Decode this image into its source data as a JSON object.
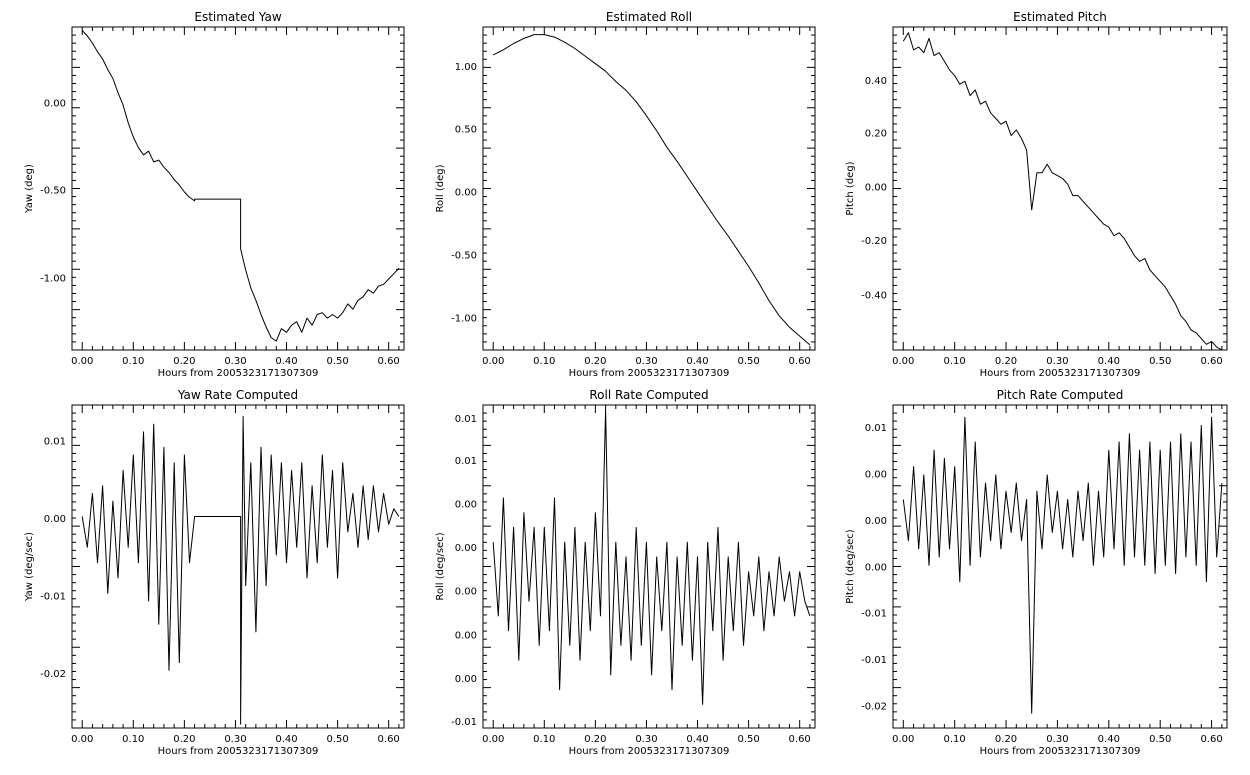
{
  "charts": [
    {
      "title": "Estimated Yaw",
      "xlabel": "Hours from 2005323171307309",
      "ylabel": "Yaw (deg)",
      "xticks": [
        "0.00",
        "0.10",
        "0.20",
        "0.30",
        "0.40",
        "0.50",
        "0.60"
      ],
      "yticks": [
        "0.00",
        "-0.50",
        "-1.00"
      ]
    },
    {
      "title": "Estimated Roll",
      "xlabel": "Hours from 2005323171307309",
      "ylabel": "Roll (deg)",
      "xticks": [
        "0.00",
        "0.10",
        "0.20",
        "0.30",
        "0.40",
        "0.50",
        "0.60"
      ],
      "yticks": [
        "1.00",
        "0.50",
        "0.00",
        "-0.50",
        "-1.00"
      ]
    },
    {
      "title": "Estimated Pitch",
      "xlabel": "Hours from 2005323171307309",
      "ylabel": "Pitch (deg)",
      "xticks": [
        "0.00",
        "0.10",
        "0.20",
        "0.30",
        "0.40",
        "0.50",
        "0.60"
      ],
      "yticks": [
        "0.40",
        "0.20",
        "0.00",
        "-0.20",
        "-0.40"
      ]
    },
    {
      "title": "Yaw Rate Computed",
      "xlabel": "Hours from 2005323171307309",
      "ylabel": "Yaw (deg/sec)",
      "xticks": [
        "0.00",
        "0.10",
        "0.20",
        "0.30",
        "0.40",
        "0.50",
        "0.60"
      ],
      "yticks": [
        "0.01",
        "0.00",
        "-0.01",
        "-0.02"
      ]
    },
    {
      "title": "Roll Rate Computed",
      "xlabel": "Hours from 2005323171307309",
      "ylabel": "Roll (deg/sec)",
      "xticks": [
        "0.00",
        "0.10",
        "0.20",
        "0.30",
        "0.40",
        "0.50",
        "0.60"
      ],
      "yticks": [
        "0.01",
        "0.01",
        "0.00",
        "0.00",
        "0.00",
        "0.00",
        "0.00",
        "-0.01"
      ]
    },
    {
      "title": "Pitch Rate Computed",
      "xlabel": "Hours from 2005323171307309",
      "ylabel": "Pitch (deg/sec)",
      "xticks": [
        "0.00",
        "0.10",
        "0.20",
        "0.30",
        "0.40",
        "0.50",
        "0.60"
      ],
      "yticks": [
        "0.01",
        "0.00",
        "0.00",
        "0.00",
        "-0.01",
        "-0.01",
        "-0.02"
      ]
    }
  ],
  "chart_data": [
    {
      "type": "line",
      "title": "Estimated Yaw",
      "xlabel": "Hours from 2005323171307309",
      "ylabel": "Yaw (deg)",
      "xlim": [
        -0.02,
        0.63
      ],
      "ylim": [
        -1.4,
        0.42
      ],
      "grid": false,
      "x": [
        0.0,
        0.01,
        0.02,
        0.03,
        0.04,
        0.05,
        0.06,
        0.07,
        0.08,
        0.09,
        0.1,
        0.11,
        0.12,
        0.13,
        0.14,
        0.15,
        0.16,
        0.17,
        0.18,
        0.19,
        0.2,
        0.21,
        0.22,
        0.22,
        0.31,
        0.31,
        0.32,
        0.33,
        0.34,
        0.35,
        0.36,
        0.37,
        0.38,
        0.39,
        0.4,
        0.41,
        0.42,
        0.43,
        0.44,
        0.45,
        0.46,
        0.47,
        0.48,
        0.49,
        0.5,
        0.51,
        0.52,
        0.53,
        0.54,
        0.55,
        0.56,
        0.57,
        0.58,
        0.59,
        0.6,
        0.61,
        0.62
      ],
      "y": [
        0.4,
        0.37,
        0.33,
        0.28,
        0.24,
        0.18,
        0.13,
        0.05,
        -0.02,
        -0.12,
        -0.2,
        -0.26,
        -0.3,
        -0.28,
        -0.34,
        -0.33,
        -0.37,
        -0.4,
        -0.44,
        -0.47,
        -0.51,
        -0.54,
        -0.56,
        -0.55,
        -0.55,
        -0.83,
        -0.95,
        -1.05,
        -1.12,
        -1.2,
        -1.27,
        -1.33,
        -1.35,
        -1.28,
        -1.3,
        -1.26,
        -1.24,
        -1.3,
        -1.22,
        -1.26,
        -1.2,
        -1.19,
        -1.22,
        -1.2,
        -1.22,
        -1.19,
        -1.14,
        -1.17,
        -1.12,
        -1.1,
        -1.06,
        -1.08,
        -1.04,
        -1.03,
        -1.0,
        -0.97,
        -0.94
      ]
    },
    {
      "type": "line",
      "title": "Estimated Roll",
      "xlabel": "Hours from 2005323171307309",
      "ylabel": "Roll (deg)",
      "xlim": [
        -0.02,
        0.63
      ],
      "ylim": [
        -1.25,
        1.3
      ],
      "grid": false,
      "x": [
        0.0,
        0.02,
        0.04,
        0.06,
        0.08,
        0.1,
        0.12,
        0.14,
        0.16,
        0.18,
        0.2,
        0.22,
        0.24,
        0.26,
        0.28,
        0.3,
        0.32,
        0.34,
        0.36,
        0.38,
        0.4,
        0.42,
        0.44,
        0.46,
        0.48,
        0.5,
        0.52,
        0.54,
        0.56,
        0.58,
        0.6,
        0.62
      ],
      "y": [
        1.08,
        1.12,
        1.17,
        1.21,
        1.24,
        1.24,
        1.22,
        1.18,
        1.13,
        1.07,
        1.01,
        0.95,
        0.87,
        0.8,
        0.71,
        0.6,
        0.48,
        0.35,
        0.24,
        0.12,
        0.0,
        -0.12,
        -0.24,
        -0.35,
        -0.47,
        -0.59,
        -0.72,
        -0.86,
        -0.98,
        -1.07,
        -1.14,
        -1.21
      ]
    },
    {
      "type": "line",
      "title": "Estimated Pitch",
      "xlabel": "Hours from 2005323171307309",
      "ylabel": "Pitch (deg)",
      "xlim": [
        -0.02,
        0.63
      ],
      "ylim": [
        -0.56,
        0.57
      ],
      "grid": false,
      "x": [
        0.0,
        0.01,
        0.02,
        0.03,
        0.04,
        0.05,
        0.06,
        0.07,
        0.08,
        0.09,
        0.1,
        0.11,
        0.12,
        0.13,
        0.14,
        0.15,
        0.16,
        0.17,
        0.18,
        0.19,
        0.2,
        0.21,
        0.22,
        0.23,
        0.24,
        0.25,
        0.26,
        0.27,
        0.28,
        0.29,
        0.3,
        0.31,
        0.32,
        0.33,
        0.34,
        0.35,
        0.36,
        0.37,
        0.38,
        0.39,
        0.4,
        0.41,
        0.42,
        0.43,
        0.44,
        0.45,
        0.46,
        0.47,
        0.48,
        0.49,
        0.5,
        0.51,
        0.52,
        0.53,
        0.54,
        0.55,
        0.56,
        0.57,
        0.58,
        0.59,
        0.6,
        0.61,
        0.62
      ],
      "y": [
        0.52,
        0.55,
        0.49,
        0.5,
        0.48,
        0.53,
        0.47,
        0.48,
        0.45,
        0.42,
        0.4,
        0.37,
        0.38,
        0.33,
        0.35,
        0.3,
        0.31,
        0.27,
        0.25,
        0.23,
        0.24,
        0.19,
        0.21,
        0.18,
        0.14,
        -0.07,
        0.06,
        0.06,
        0.09,
        0.06,
        0.05,
        0.04,
        0.02,
        -0.02,
        -0.02,
        -0.04,
        -0.06,
        -0.08,
        -0.1,
        -0.12,
        -0.13,
        -0.16,
        -0.15,
        -0.17,
        -0.2,
        -0.23,
        -0.25,
        -0.24,
        -0.28,
        -0.3,
        -0.32,
        -0.34,
        -0.37,
        -0.4,
        -0.44,
        -0.46,
        -0.49,
        -0.5,
        -0.52,
        -0.54,
        -0.53,
        -0.55,
        -0.56
      ]
    },
    {
      "type": "line",
      "title": "Yaw Rate Computed",
      "xlabel": "Hours from 2005323171307309",
      "ylabel": "Yaw (deg/sec)",
      "xlim": [
        -0.02,
        0.63
      ],
      "ylim": [
        -0.0275,
        0.0145
      ],
      "grid": false,
      "x": [
        0.0,
        0.01,
        0.02,
        0.03,
        0.04,
        0.05,
        0.06,
        0.07,
        0.08,
        0.09,
        0.1,
        0.11,
        0.12,
        0.13,
        0.14,
        0.15,
        0.16,
        0.17,
        0.18,
        0.19,
        0.2,
        0.21,
        0.22,
        0.22,
        0.31,
        0.31,
        0.315,
        0.32,
        0.33,
        0.34,
        0.35,
        0.36,
        0.37,
        0.38,
        0.39,
        0.4,
        0.41,
        0.42,
        0.43,
        0.44,
        0.45,
        0.46,
        0.47,
        0.48,
        0.49,
        0.5,
        0.51,
        0.52,
        0.53,
        0.54,
        0.55,
        0.56,
        0.57,
        0.58,
        0.59,
        0.6,
        0.61,
        0.62
      ],
      "y": [
        0.0,
        -0.004,
        0.003,
        -0.006,
        0.004,
        -0.01,
        0.002,
        -0.008,
        0.006,
        -0.004,
        0.008,
        -0.006,
        0.011,
        -0.011,
        0.012,
        -0.014,
        0.009,
        -0.02,
        0.007,
        -0.019,
        0.008,
        -0.006,
        0.0,
        0.0,
        0.0,
        -0.027,
        0.013,
        -0.009,
        0.007,
        -0.015,
        0.009,
        -0.009,
        0.008,
        -0.005,
        0.007,
        -0.006,
        0.006,
        -0.004,
        0.007,
        -0.008,
        0.004,
        -0.006,
        0.008,
        -0.004,
        0.006,
        -0.008,
        0.007,
        -0.002,
        0.003,
        -0.004,
        0.004,
        -0.003,
        0.004,
        -0.002,
        0.003,
        -0.001,
        0.001,
        0.0
      ]
    },
    {
      "type": "line",
      "title": "Roll Rate Computed",
      "xlabel": "Hours from 2005323171307309",
      "ylabel": "Roll (deg/sec)",
      "xlim": [
        -0.02,
        0.63
      ],
      "ylim": [
        -0.0106,
        0.0113
      ],
      "grid": false,
      "x": [
        0.0,
        0.01,
        0.02,
        0.03,
        0.04,
        0.05,
        0.06,
        0.07,
        0.08,
        0.09,
        0.1,
        0.11,
        0.12,
        0.13,
        0.14,
        0.15,
        0.16,
        0.17,
        0.18,
        0.19,
        0.2,
        0.21,
        0.22,
        0.23,
        0.24,
        0.25,
        0.26,
        0.27,
        0.28,
        0.29,
        0.3,
        0.31,
        0.32,
        0.33,
        0.34,
        0.35,
        0.36,
        0.37,
        0.38,
        0.39,
        0.4,
        0.41,
        0.42,
        0.43,
        0.44,
        0.45,
        0.46,
        0.47,
        0.48,
        0.49,
        0.5,
        0.51,
        0.52,
        0.53,
        0.54,
        0.55,
        0.56,
        0.57,
        0.58,
        0.59,
        0.6,
        0.61,
        0.62
      ],
      "y": [
        0.002,
        -0.003,
        0.005,
        -0.004,
        0.003,
        -0.006,
        0.004,
        -0.002,
        0.003,
        -0.005,
        0.003,
        -0.004,
        0.005,
        -0.008,
        0.002,
        -0.005,
        0.003,
        -0.006,
        0.002,
        -0.004,
        0.004,
        -0.003,
        0.011,
        -0.007,
        0.002,
        -0.005,
        0.001,
        -0.006,
        0.003,
        -0.005,
        0.002,
        -0.007,
        0.001,
        -0.004,
        0.002,
        -0.008,
        0.001,
        -0.005,
        0.002,
        -0.006,
        0.001,
        -0.009,
        0.002,
        -0.004,
        0.003,
        -0.006,
        0.001,
        -0.004,
        0.002,
        -0.005,
        0.0,
        -0.003,
        0.001,
        -0.004,
        0.0,
        -0.003,
        0.001,
        -0.002,
        0.0,
        -0.003,
        0.0,
        -0.002,
        -0.003
      ]
    },
    {
      "type": "line",
      "title": "Pitch Rate Computed",
      "xlabel": "Hours from 2005323171307309",
      "ylabel": "Pitch (deg/sec)",
      "xlim": [
        -0.02,
        0.63
      ],
      "ylim": [
        -0.0258,
        0.0135
      ],
      "grid": false,
      "x": [
        0.0,
        0.01,
        0.02,
        0.03,
        0.04,
        0.05,
        0.06,
        0.07,
        0.08,
        0.09,
        0.1,
        0.11,
        0.12,
        0.13,
        0.14,
        0.15,
        0.16,
        0.17,
        0.18,
        0.19,
        0.2,
        0.21,
        0.22,
        0.23,
        0.24,
        0.25,
        0.26,
        0.27,
        0.28,
        0.29,
        0.3,
        0.31,
        0.32,
        0.33,
        0.34,
        0.35,
        0.36,
        0.37,
        0.38,
        0.39,
        0.4,
        0.41,
        0.42,
        0.43,
        0.44,
        0.45,
        0.46,
        0.47,
        0.48,
        0.49,
        0.5,
        0.51,
        0.52,
        0.53,
        0.54,
        0.55,
        0.56,
        0.57,
        0.58,
        0.59,
        0.6,
        0.61,
        0.62
      ],
      "y": [
        0.002,
        -0.003,
        0.006,
        -0.004,
        0.005,
        -0.006,
        0.008,
        -0.005,
        0.007,
        -0.004,
        0.006,
        -0.008,
        0.012,
        -0.006,
        0.009,
        -0.005,
        0.004,
        -0.003,
        0.005,
        -0.004,
        0.003,
        -0.002,
        0.004,
        -0.003,
        0.002,
        -0.024,
        0.003,
        -0.004,
        0.005,
        -0.002,
        0.003,
        -0.004,
        0.002,
        -0.005,
        0.003,
        -0.003,
        0.004,
        -0.006,
        0.003,
        -0.005,
        0.008,
        -0.004,
        0.009,
        -0.006,
        0.01,
        -0.005,
        0.008,
        -0.006,
        0.009,
        -0.007,
        0.008,
        -0.006,
        0.009,
        -0.007,
        0.01,
        -0.005,
        0.009,
        -0.006,
        0.011,
        -0.008,
        0.012,
        -0.005,
        0.004
      ]
    }
  ]
}
